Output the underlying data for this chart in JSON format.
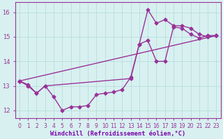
{
  "bg_color": "#d8f0f0",
  "line_color": "#993399",
  "grid_color": "#b8dede",
  "xlabel": "Windchill (Refroidissement éolien,°C)",
  "xlabel_color": "#7700aa",
  "xlim": [
    -0.5,
    23.5
  ],
  "ylim": [
    11.7,
    16.4
  ],
  "yticks": [
    12,
    13,
    14,
    15,
    16
  ],
  "xticks": [
    0,
    1,
    2,
    3,
    4,
    5,
    6,
    7,
    8,
    9,
    10,
    11,
    12,
    13,
    14,
    15,
    16,
    17,
    18,
    19,
    20,
    21,
    22,
    23
  ],
  "series1_x": [
    0,
    1,
    2,
    3,
    4,
    5,
    6,
    7,
    8,
    9,
    10,
    11,
    12,
    13,
    14,
    15,
    16,
    17,
    18,
    19,
    20,
    21,
    22,
    23
  ],
  "series1_y": [
    13.2,
    13.0,
    12.7,
    13.0,
    12.55,
    12.0,
    12.15,
    12.15,
    12.2,
    12.65,
    12.7,
    12.75,
    12.85,
    13.35,
    14.7,
    14.85,
    14.0,
    14.0,
    15.4,
    15.35,
    15.1,
    14.95,
    15.05,
    15.05
  ],
  "series2_x": [
    0,
    23
  ],
  "series2_y": [
    13.2,
    15.05
  ],
  "series3_x": [
    0,
    1,
    2,
    3,
    13,
    14,
    15,
    16,
    17,
    18,
    19,
    20,
    21,
    22,
    23
  ],
  "series3_y": [
    13.2,
    13.05,
    12.7,
    13.0,
    13.3,
    14.7,
    16.1,
    15.55,
    15.7,
    15.45,
    15.45,
    15.35,
    15.1,
    15.0,
    15.05
  ],
  "marker": "D",
  "markersize": 2.5,
  "linewidth": 1.0
}
